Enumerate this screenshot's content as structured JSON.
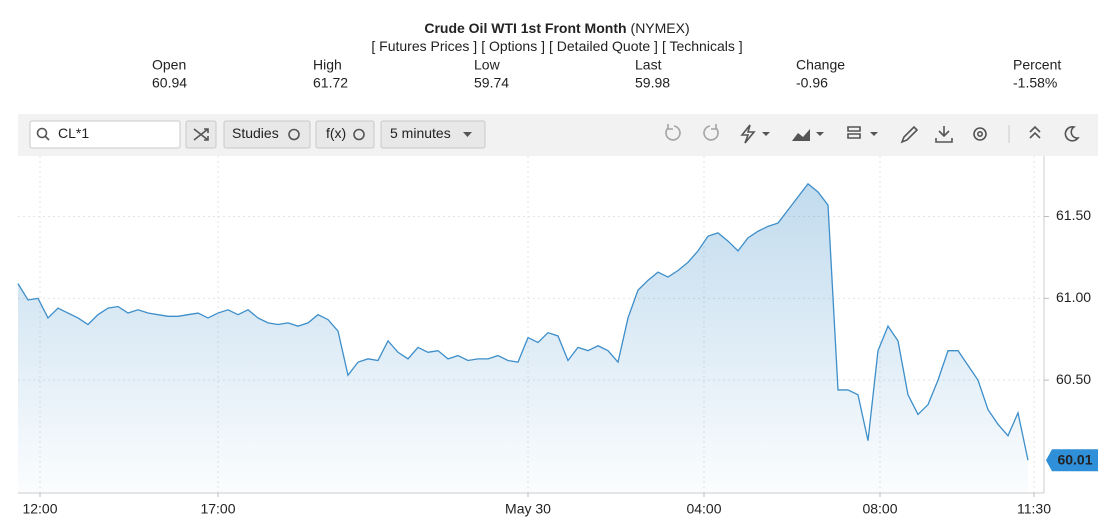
{
  "header": {
    "title": "Crude Oil WTI 1st Front Month",
    "exchange": "(NYMEX)",
    "links": [
      "[ Futures Prices ]",
      "[ Options ]",
      "[ Detailed Quote ]",
      "[ Technicals ]"
    ]
  },
  "quote": {
    "items": [
      {
        "label": "Open",
        "value": "60.94"
      },
      {
        "label": "High",
        "value": "61.72"
      },
      {
        "label": "Low",
        "value": "59.74"
      },
      {
        "label": "Last",
        "value": "59.98"
      },
      {
        "label": "Change",
        "value": "-0.96"
      },
      {
        "label": "Percent",
        "value": "-1.58%"
      }
    ]
  },
  "toolbar": {
    "symbol": "CL*1",
    "studies": "Studies",
    "function": "f(x)",
    "interval": "5 minutes"
  },
  "chart_data": {
    "type": "line",
    "series": [
      {
        "color": "#3d8ec9",
        "values": [
          61.09,
          60.99,
          61.0,
          60.88,
          60.94,
          60.91,
          60.88,
          60.84,
          60.9,
          60.94,
          60.95,
          60.91,
          60.93,
          60.91,
          60.9,
          60.89,
          60.89,
          60.9,
          60.91,
          60.88,
          60.91,
          60.93,
          60.9,
          60.93,
          60.88,
          60.85,
          60.84,
          60.85,
          60.83,
          60.85,
          60.9,
          60.87,
          60.8,
          60.53,
          60.61,
          60.63,
          60.62,
          60.74,
          60.67,
          60.63,
          60.7,
          60.67,
          60.68,
          60.63,
          60.65,
          60.62,
          60.63,
          60.63,
          60.65,
          60.62,
          60.61,
          60.76,
          60.73,
          60.79,
          60.77,
          60.62,
          60.7,
          60.68,
          60.71,
          60.68,
          60.61,
          60.88,
          61.05,
          61.11,
          61.16,
          61.13,
          61.17,
          61.22,
          61.29,
          61.38,
          61.4,
          61.35,
          61.29,
          61.37,
          61.41,
          61.44,
          61.46,
          61.54,
          61.62,
          61.7,
          61.65,
          61.57,
          60.44,
          60.44,
          60.41,
          60.13,
          60.68,
          60.83,
          60.74,
          60.41,
          60.29,
          60.35,
          60.5,
          60.68,
          60.68,
          60.59,
          60.5,
          60.32,
          60.23,
          60.16,
          60.3,
          60.01
        ]
      }
    ],
    "xlim": [
      0,
      102.6
    ],
    "xticks": [
      {
        "value": 2.2,
        "label": "12:00"
      },
      {
        "value": 20,
        "label": "17:00"
      },
      {
        "value": 51,
        "label": "May 30"
      },
      {
        "value": 68.6,
        "label": "04:00"
      },
      {
        "value": 86.2,
        "label": "08:00"
      },
      {
        "value": 101.6,
        "label": "11:30"
      }
    ],
    "ylim": [
      59.81,
      61.87
    ],
    "yticks": [
      {
        "value": 60.5,
        "label": "60.50"
      },
      {
        "value": 61,
        "label": "61.00"
      },
      {
        "value": 61.5,
        "label": "61.50"
      }
    ],
    "grid": true,
    "last_label_color": "#2f8fd8"
  }
}
